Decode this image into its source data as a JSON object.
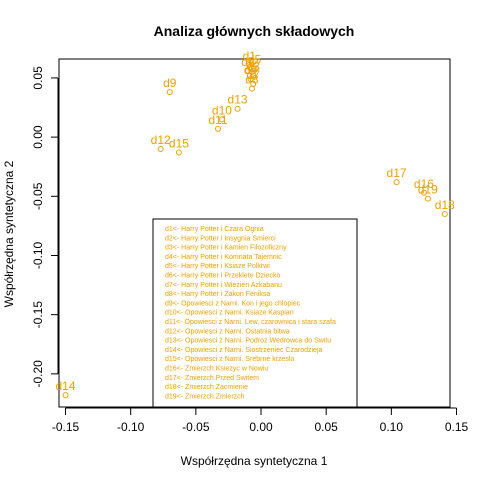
{
  "chart_data": {
    "type": "scatter",
    "title": "Analiza głównych składowych",
    "xlabel": "Współrzędna syntetyczna 1",
    "ylabel": "Współrzędna syntetyczna 2",
    "xlim": [
      -0.155,
      0.145
    ],
    "ylim": [
      -0.228,
      0.066
    ],
    "x_ticks": [
      -0.15,
      -0.1,
      -0.05,
      0.0,
      0.05,
      0.1,
      0.15
    ],
    "x_tick_labels": [
      "-0.15",
      "-0.10",
      "-0.05",
      "0.00",
      "0.05",
      "0.10",
      "0.15"
    ],
    "y_ticks": [
      -0.2,
      -0.15,
      -0.1,
      -0.05,
      0.0,
      0.05
    ],
    "y_tick_labels": [
      "-0.20",
      "-0.15",
      "-0.10",
      "-0.05",
      "0.00",
      "0.05"
    ],
    "color": "#f0a000",
    "points": [
      {
        "label": "d1",
        "x": -0.009,
        "y": 0.061
      },
      {
        "label": "d2",
        "x": -0.007,
        "y": 0.055
      },
      {
        "label": "d3",
        "x": -0.006,
        "y": 0.052
      },
      {
        "label": "d4",
        "x": -0.008,
        "y": 0.049
      },
      {
        "label": "d5",
        "x": -0.005,
        "y": 0.058
      },
      {
        "label": "d6",
        "x": -0.01,
        "y": 0.056
      },
      {
        "label": "d7",
        "x": -0.006,
        "y": 0.045
      },
      {
        "label": "d8",
        "x": -0.007,
        "y": 0.041
      },
      {
        "label": "d9",
        "x": -0.07,
        "y": 0.038
      },
      {
        "label": "d10",
        "x": -0.03,
        "y": 0.015
      },
      {
        "label": "d11",
        "x": -0.033,
        "y": 0.007
      },
      {
        "label": "d12",
        "x": -0.077,
        "y": -0.01
      },
      {
        "label": "d13",
        "x": -0.018,
        "y": 0.024
      },
      {
        "label": "d14",
        "x": -0.15,
        "y": -0.218
      },
      {
        "label": "d15",
        "x": -0.063,
        "y": -0.013
      },
      {
        "label": "d16",
        "x": 0.125,
        "y": -0.047
      },
      {
        "label": "d17",
        "x": 0.104,
        "y": -0.038
      },
      {
        "label": "d18",
        "x": 0.141,
        "y": -0.065
      },
      {
        "label": "d19",
        "x": 0.128,
        "y": -0.052
      }
    ],
    "legend": {
      "placement": "bottom-center",
      "entries": [
        "d1<- Harry Potter i Czara Ognia",
        "d2<- Harry Potter i Insygnia Smierci",
        "d3<- Harry Potter i Kamien Filozoficzny",
        "d4<- Harry Potter i Komnata Tajemnic",
        "d5<- Harry Potter i Ksiaze Polkrwi",
        "d6<- Harry Potter i Przeklete Dziecko",
        "d7<- Harry Potter i Wiezien Azkabanu",
        "d8<- Harry Potter i Zakon Feniksa",
        "d9<- Opowiesci z Narni. Kon i jego chlopiec",
        "d10<- Opowiesci z Narni. Ksiaze Kaspian",
        "d11<- Opowiesci z Narni. Lew, czarownica i stara szafa",
        "d12<- Opowiesci z Narni. Ostatnia bitwa",
        "d13<- Opowiesci z Narni. Podroz Wedrowca do Switu",
        "d14<- Opowiesci z Narni. Siostrzeniec Czarodzieja",
        "d15<- Opowiesci z Narni. Srebrne krzeslo",
        "d16<- Zmierzch.Ksiezyc w Nowiu",
        "d17<- Zmierzch.Przed Switem",
        "d18<- Zmierzch.Zacmienie",
        "d19<- Zmierzch.Zmierzch"
      ]
    }
  }
}
